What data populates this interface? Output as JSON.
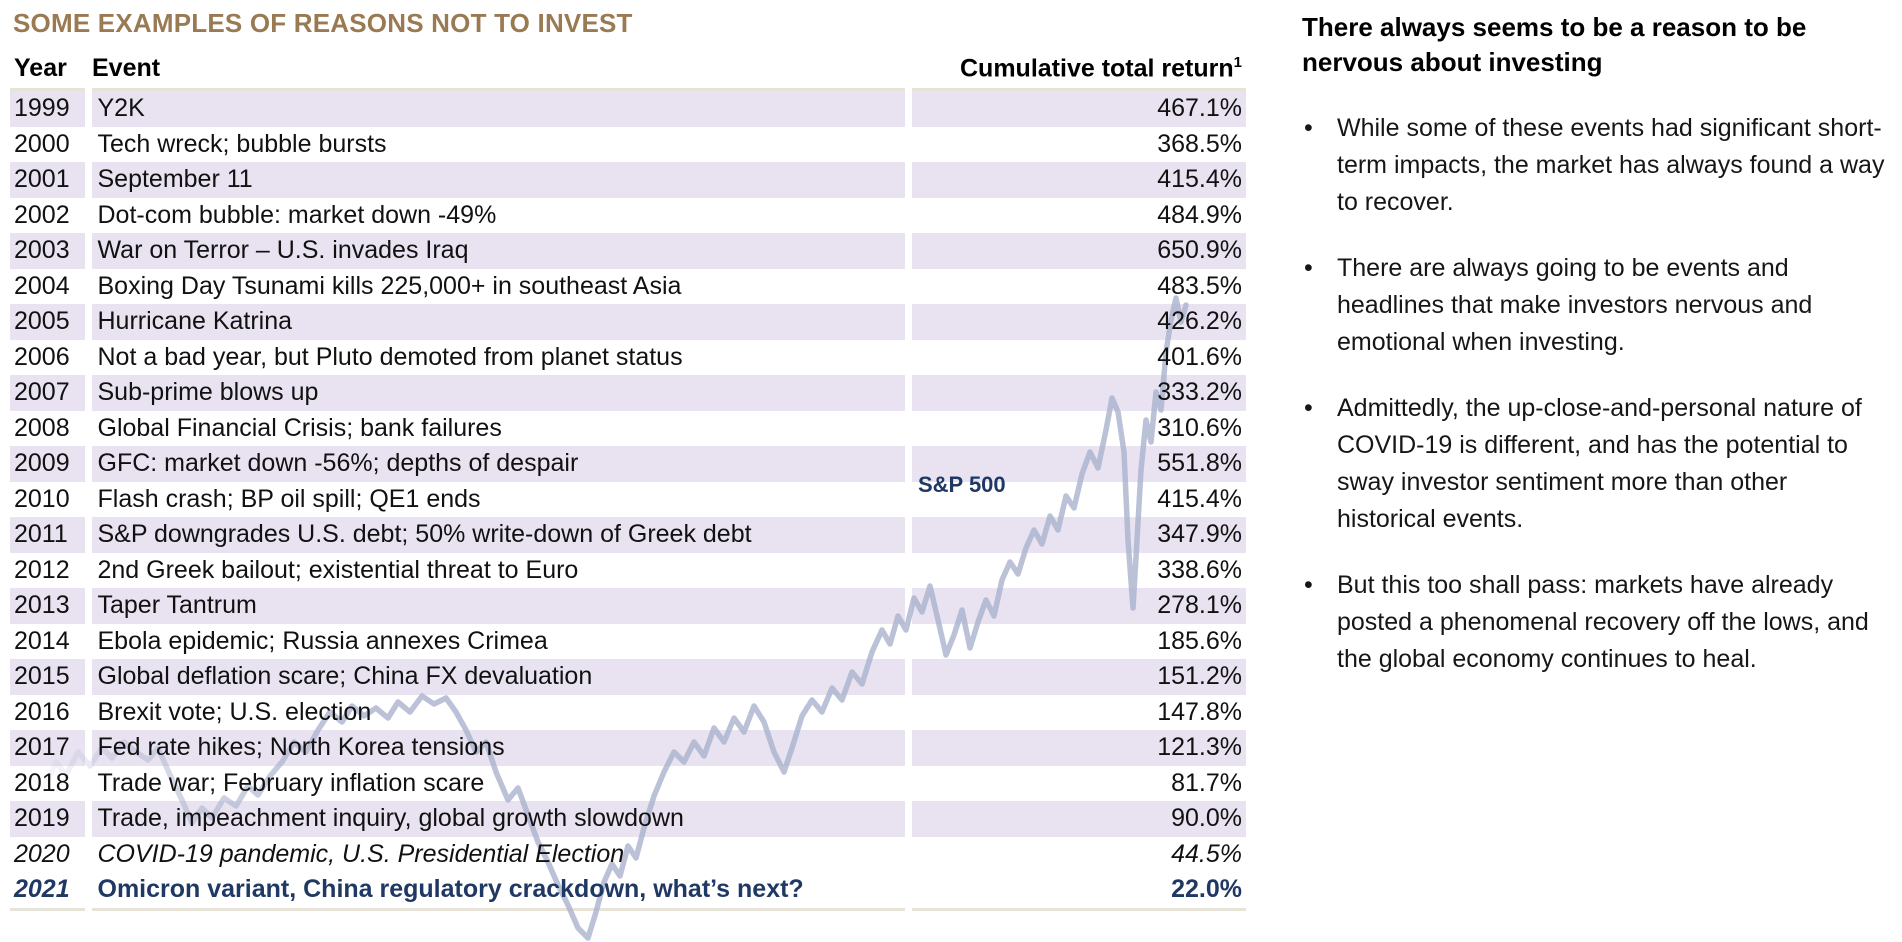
{
  "title": "SOME EXAMPLES OF REASONS NOT TO INVEST",
  "table": {
    "columns": {
      "year": "Year",
      "event": "Event",
      "return_label": "Cumulative total return",
      "return_superscript": "1"
    },
    "sp500_label": "S&P 500",
    "rows": [
      {
        "year": "1999",
        "event": "Y2K",
        "return": "467.1%"
      },
      {
        "year": "2000",
        "event": "Tech wreck; bubble bursts",
        "return": "368.5%"
      },
      {
        "year": "2001",
        "event": "September 11",
        "return": "415.4%"
      },
      {
        "year": "2002",
        "event": "Dot-com bubble: market down -49%",
        "return": "484.9%"
      },
      {
        "year": "2003",
        "event": "War on Terror – U.S. invades Iraq",
        "return": "650.9%"
      },
      {
        "year": "2004",
        "event": "Boxing Day Tsunami kills 225,000+ in southeast Asia",
        "return": "483.5%"
      },
      {
        "year": "2005",
        "event": "Hurricane Katrina",
        "return": "426.2%"
      },
      {
        "year": "2006",
        "event": "Not a bad year, but Pluto demoted from planet status",
        "return": "401.6%"
      },
      {
        "year": "2007",
        "event": "Sub-prime blows up",
        "return": "333.2%"
      },
      {
        "year": "2008",
        "event": "Global Financial Crisis; bank failures",
        "return": "310.6%"
      },
      {
        "year": "2009",
        "event": "GFC: market down -56%; depths of despair",
        "return": "551.8%"
      },
      {
        "year": "2010",
        "event": "Flash crash; BP oil spill; QE1 ends",
        "return": "415.4%"
      },
      {
        "year": "2011",
        "event": "S&P downgrades U.S. debt; 50% write-down of Greek debt",
        "return": "347.9%"
      },
      {
        "year": "2012",
        "event": "2nd Greek bailout; existential threat to Euro",
        "return": "338.6%"
      },
      {
        "year": "2013",
        "event": "Taper Tantrum",
        "return": "278.1%"
      },
      {
        "year": "2014",
        "event": "Ebola epidemic; Russia annexes Crimea",
        "return": "185.6%"
      },
      {
        "year": "2015",
        "event": "Global deflation scare; China FX devaluation",
        "return": "151.2%"
      },
      {
        "year": "2016",
        "event": "Brexit vote; U.S. election",
        "return": "147.8%"
      },
      {
        "year": "2017",
        "event": "Fed rate hikes; North Korea tensions",
        "return": "121.3%"
      },
      {
        "year": "2018",
        "event": "Trade war; February inflation scare",
        "return": "81.7%"
      },
      {
        "year": "2019",
        "event": "Trade, impeachment inquiry, global growth slowdown",
        "return": "90.0%"
      },
      {
        "year": "2020",
        "event": "COVID-19 pandemic, U.S. Presidential Election",
        "return": "44.5%",
        "emphasis": "italic"
      },
      {
        "year": "2021",
        "event": "Omicron variant, China regulatory crackdown, what’s next?",
        "return": "22.0%",
        "emphasis": "highlight"
      }
    ]
  },
  "sidebar": {
    "heading": "There always seems to be a reason to be nervous about investing",
    "bullets": [
      "While some of these events had significant short-term impacts, the market has always found a way to recover.",
      "There are always going to be events and headlines that make investors nervous and emotional when investing.",
      "Admittedly, the up-close-and-personal nature of COVID-19 is different, and has the potential to sway investor sentiment more than other historical events.",
      "But this too shall pass: markets have already posted a phenomenal recovery off the lows, and the global economy continues to heal."
    ]
  },
  "colors": {
    "title": "#9a7a52",
    "row_shading": "#e8e2f1",
    "highlight_navy": "#1f3864",
    "table_border": "#e7e3d8",
    "chart_line": "#aab2cd"
  }
}
